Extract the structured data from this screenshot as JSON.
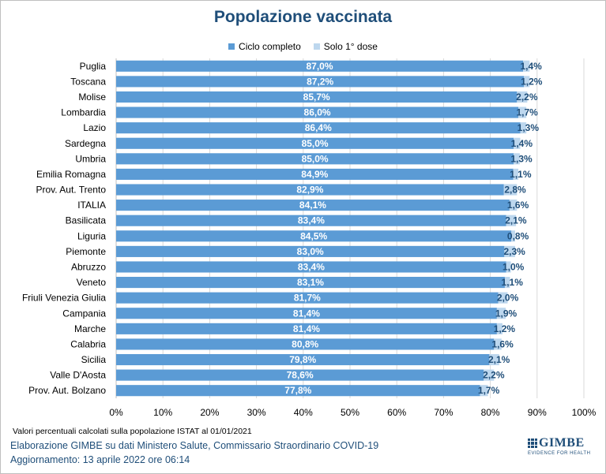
{
  "title": "Popolazione vaccinata",
  "legend": {
    "primary": "Ciclo completo",
    "secondary": "Solo 1° dose"
  },
  "colors": {
    "primary": "#5b9bd5",
    "secondary": "#bdd7ee",
    "title": "#1f4e79",
    "grid": "#d9d9d9"
  },
  "chart_data": {
    "type": "bar",
    "orientation": "horizontal",
    "stacked": true,
    "categories": [
      "Puglia",
      "Toscana",
      "Molise",
      "Lombardia",
      "Lazio",
      "Sardegna",
      "Umbria",
      "Emilia Romagna",
      "Prov. Aut. Trento",
      "ITALIA",
      "Basilicata",
      "Liguria",
      "Piemonte",
      "Abruzzo",
      "Veneto",
      "Friuli Venezia Giulia",
      "Campania",
      "Marche",
      "Calabria",
      "Sicilia",
      "Valle D'Aosta",
      "Prov. Aut. Bolzano"
    ],
    "series": [
      {
        "name": "Ciclo completo",
        "values": [
          87.0,
          87.2,
          85.7,
          86.0,
          86.4,
          85.0,
          85.0,
          84.9,
          82.9,
          84.1,
          83.4,
          84.5,
          83.0,
          83.4,
          83.1,
          81.7,
          81.4,
          81.4,
          80.8,
          79.8,
          78.6,
          77.8
        ],
        "labels": [
          "87,0%",
          "87,2%",
          "85,7%",
          "86,0%",
          "86,4%",
          "85,0%",
          "85,0%",
          "84,9%",
          "82,9%",
          "84,1%",
          "83,4%",
          "84,5%",
          "83,0%",
          "83,4%",
          "83,1%",
          "81,7%",
          "81,4%",
          "81,4%",
          "80,8%",
          "79,8%",
          "78,6%",
          "77,8%"
        ]
      },
      {
        "name": "Solo 1° dose",
        "values": [
          1.4,
          1.2,
          2.2,
          1.7,
          1.3,
          1.4,
          1.3,
          1.1,
          2.8,
          1.6,
          2.1,
          0.8,
          2.3,
          1.0,
          1.1,
          2.0,
          1.9,
          1.2,
          1.6,
          2.1,
          2.2,
          1.7
        ],
        "labels": [
          "1,4%",
          "1,2%",
          "2,2%",
          "1,7%",
          "1,3%",
          "1,4%",
          "1,3%",
          "1,1%",
          "2,8%",
          "1,6%",
          "2,1%",
          "0,8%",
          "2,3%",
          "1,0%",
          "1,1%",
          "2,0%",
          "1,9%",
          "1,2%",
          "1,6%",
          "2,1%",
          "2,2%",
          "1,7%"
        ]
      }
    ],
    "xlim": [
      0,
      100
    ],
    "xticks": [
      "0%",
      "10%",
      "20%",
      "30%",
      "40%",
      "50%",
      "60%",
      "70%",
      "80%",
      "90%",
      "100%"
    ],
    "grid": true
  },
  "footer": {
    "note": "Valori percentuali calcolati sulla popolazione ISTAT al 01/01/2021",
    "source": "Elaborazione GIMBE su dati Ministero Salute, Commissario Straordinario COVID-19",
    "updated": "Aggiornamento: 13 aprile 2022 ore 06:14",
    "logo_text": "GIMBE",
    "logo_tagline": "EVIDENCE FOR HEALTH"
  }
}
